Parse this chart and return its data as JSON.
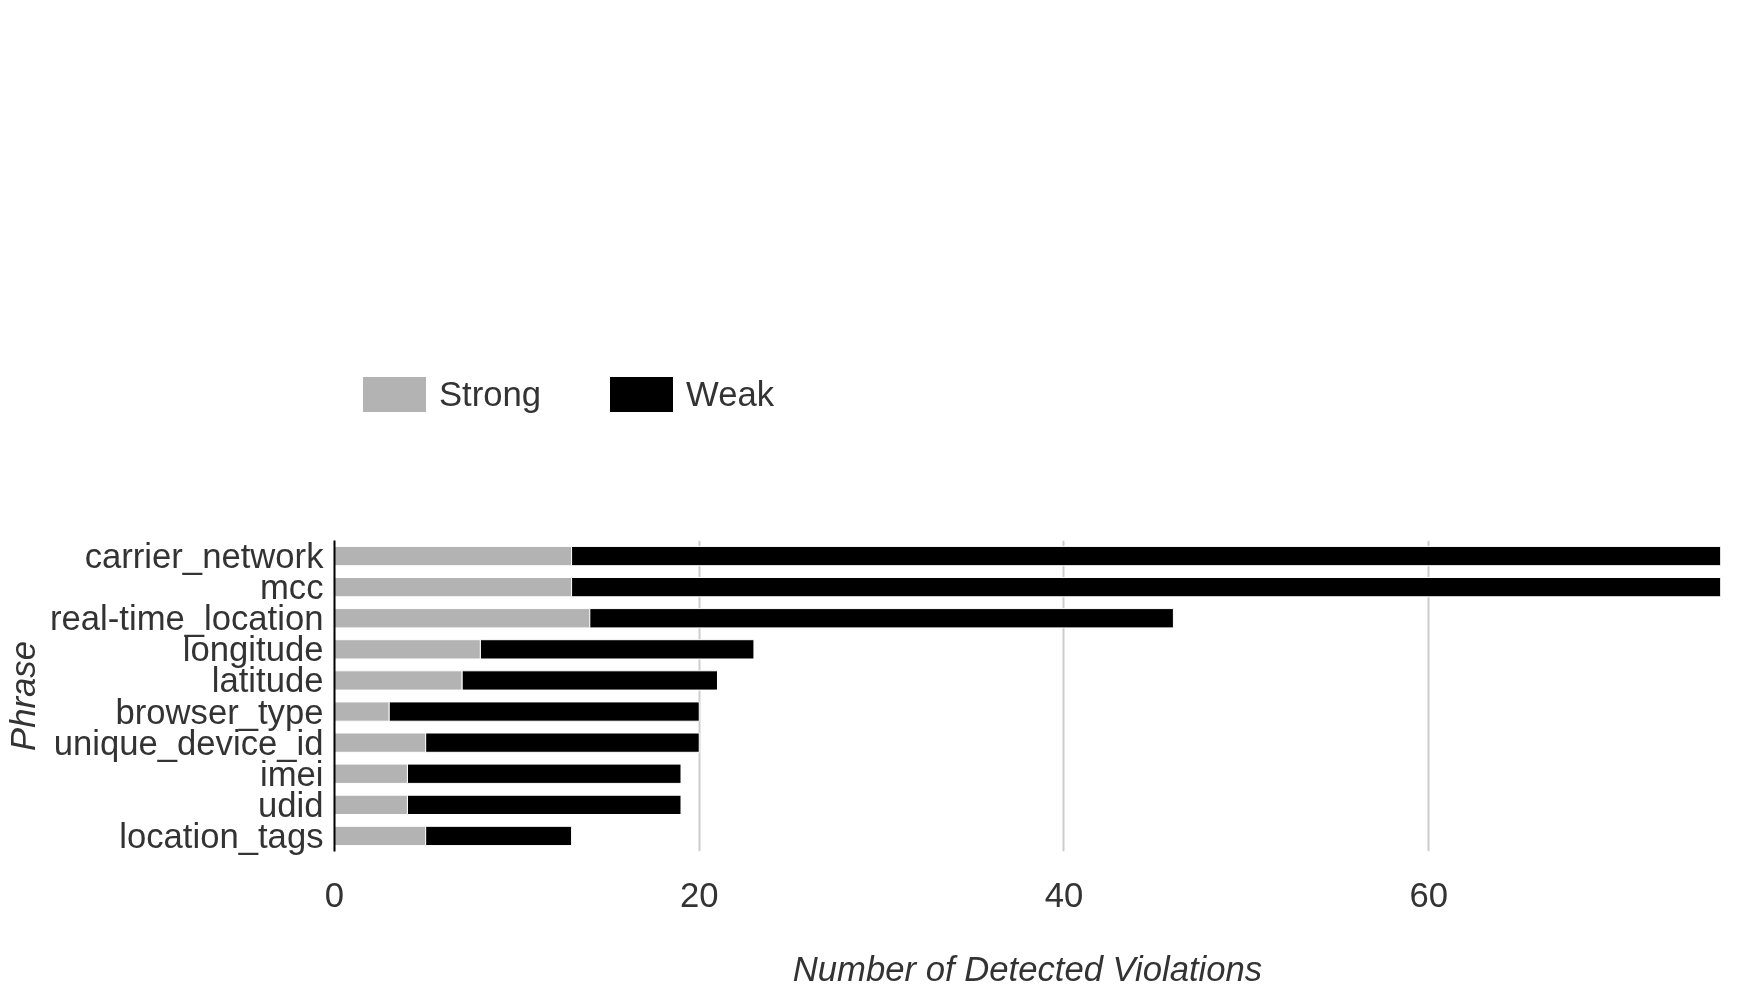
{
  "chart_data": {
    "type": "bar",
    "orientation": "horizontal",
    "stacked": true,
    "xlabel": "Number of Detected Violations",
    "ylabel": "Phrase",
    "categories": [
      "carrier_network",
      "mcc",
      "real-time_location",
      "longitude",
      "latitude",
      "browser_type",
      "unique_device_id",
      "imei",
      "udid",
      "location_tags"
    ],
    "series": [
      {
        "name": "Strong",
        "color": "#b3b3b3",
        "values": [
          13,
          13,
          14,
          8,
          7,
          3,
          5,
          4,
          4,
          5
        ]
      },
      {
        "name": "Weak",
        "color": "#000000",
        "values": [
          63,
          63,
          32,
          15,
          14,
          17,
          15,
          15,
          15,
          8
        ]
      }
    ],
    "xlim": [
      0,
      76
    ],
    "xticks": [
      0,
      20,
      40,
      60
    ],
    "grid": "x",
    "legend": "top"
  }
}
